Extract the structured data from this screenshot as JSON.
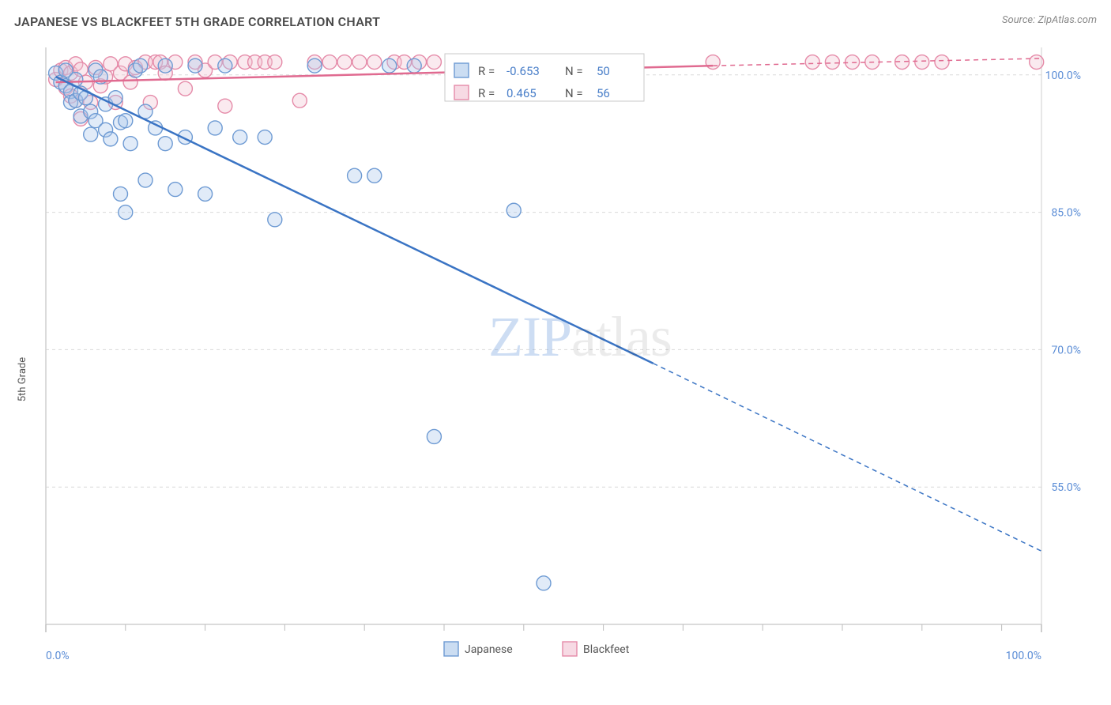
{
  "title": "JAPANESE VS BLACKFEET 5TH GRADE CORRELATION CHART",
  "source_prefix": "Source: ",
  "source_name": "ZipAtlas.com",
  "watermark_a": "ZIP",
  "watermark_b": "atlas",
  "y_axis_label": "5th Grade",
  "chart": {
    "type": "scatter",
    "background_color": "#ffffff",
    "grid_color": "#d9d9d9",
    "axis_color": "#cfcfcf",
    "tick_color": "#bdbdbd",
    "xlim": [
      0,
      100
    ],
    "ylim": [
      40,
      103
    ],
    "x_ticks_major": [
      0,
      100
    ],
    "x_ticks_minor": [
      8,
      16,
      24,
      32,
      40,
      48,
      56,
      64,
      72,
      80,
      88,
      96
    ],
    "x_tick_labels": {
      "0": "0.0%",
      "100": "100.0%"
    },
    "y_gridlines": [
      55,
      70,
      85,
      100
    ],
    "y_tick_labels": {
      "55": "55.0%",
      "70": "70.0%",
      "85": "85.0%",
      "100": "100.0%"
    },
    "marker_radius": 9,
    "marker_stroke_width": 1.4,
    "marker_fill_opacity": 0.35,
    "trend_line_width": 2.5,
    "trend_dash": "6 5"
  },
  "series": {
    "japanese": {
      "label": "Japanese",
      "fill": "#a9c6ea",
      "stroke": "#6d9ad3",
      "line_color": "#3a74c4",
      "R": "-0.653",
      "N": "50",
      "trend": {
        "x1": 1,
        "y1": 99.8,
        "x2_solid": 61,
        "y2_solid": 68.5,
        "x2": 100,
        "y2": 48
      },
      "points": [
        [
          1,
          100.2
        ],
        [
          1.5,
          99.2
        ],
        [
          2,
          98.8
        ],
        [
          2,
          100.5
        ],
        [
          2.5,
          98.2
        ],
        [
          2.5,
          97
        ],
        [
          3,
          97.2
        ],
        [
          3,
          99.5
        ],
        [
          3.5,
          95.5
        ],
        [
          3.5,
          98
        ],
        [
          4,
          97.5
        ],
        [
          4.5,
          96
        ],
        [
          4.5,
          93.5
        ],
        [
          5,
          95
        ],
        [
          5,
          100.5
        ],
        [
          5.5,
          99.8
        ],
        [
          6,
          94
        ],
        [
          6,
          96.8
        ],
        [
          6.5,
          93
        ],
        [
          7,
          97.5
        ],
        [
          7.5,
          94.8
        ],
        [
          7.5,
          87
        ],
        [
          8,
          95
        ],
        [
          8,
          85
        ],
        [
          8.5,
          92.5
        ],
        [
          9,
          100.5
        ],
        [
          9.5,
          101
        ],
        [
          10,
          88.5
        ],
        [
          10,
          96
        ],
        [
          11,
          94.2
        ],
        [
          12,
          92.5
        ],
        [
          12,
          101
        ],
        [
          13,
          87.5
        ],
        [
          14,
          93.2
        ],
        [
          15,
          101
        ],
        [
          16,
          87
        ],
        [
          17,
          94.2
        ],
        [
          18,
          101
        ],
        [
          19.5,
          93.2
        ],
        [
          22,
          93.2
        ],
        [
          23,
          84.2
        ],
        [
          27,
          101
        ],
        [
          31,
          89
        ],
        [
          33,
          89
        ],
        [
          34.5,
          101
        ],
        [
          37,
          101
        ],
        [
          39,
          60.5
        ],
        [
          47,
          85.2
        ],
        [
          48,
          101
        ],
        [
          50,
          44.5
        ]
      ]
    },
    "blackfeet": {
      "label": "Blackfeet",
      "fill": "#f2c2d2",
      "stroke": "#e58aa8",
      "line_color": "#e06a90",
      "R": "0.465",
      "N": "56",
      "trend": {
        "x1": 1,
        "y1": 99.2,
        "x2_solid": 67,
        "y2_solid": 101,
        "x2": 100,
        "y2": 101.8
      },
      "points": [
        [
          1,
          99.5
        ],
        [
          1.5,
          100.5
        ],
        [
          2,
          98.6
        ],
        [
          2,
          100.8
        ],
        [
          2.5,
          97.7
        ],
        [
          2.5,
          100.2
        ],
        [
          3,
          97.2
        ],
        [
          3,
          101.2
        ],
        [
          3.5,
          100.6
        ],
        [
          3.5,
          95.2
        ],
        [
          4,
          99.2
        ],
        [
          4.5,
          97
        ],
        [
          5,
          100.8
        ],
        [
          5.5,
          98.8
        ],
        [
          6,
          99.8
        ],
        [
          6.5,
          101.2
        ],
        [
          7,
          97
        ],
        [
          7.5,
          100.2
        ],
        [
          8,
          101.2
        ],
        [
          8.5,
          99.2
        ],
        [
          9,
          100.8
        ],
        [
          10,
          101.4
        ],
        [
          10.5,
          97
        ],
        [
          11,
          101.4
        ],
        [
          11.5,
          101.4
        ],
        [
          12,
          100.2
        ],
        [
          13,
          101.4
        ],
        [
          14,
          98.5
        ],
        [
          15,
          101.4
        ],
        [
          16,
          100.5
        ],
        [
          17,
          101.4
        ],
        [
          18,
          96.6
        ],
        [
          18.5,
          101.4
        ],
        [
          20,
          101.4
        ],
        [
          21,
          101.4
        ],
        [
          22,
          101.4
        ],
        [
          23,
          101.4
        ],
        [
          25.5,
          97.2
        ],
        [
          27,
          101.4
        ],
        [
          28.5,
          101.4
        ],
        [
          30,
          101.4
        ],
        [
          31.5,
          101.4
        ],
        [
          33,
          101.4
        ],
        [
          35,
          101.4
        ],
        [
          36,
          101.4
        ],
        [
          37.5,
          101.4
        ],
        [
          39,
          101.4
        ],
        [
          67,
          101.4
        ],
        [
          77,
          101.4
        ],
        [
          79,
          101.4
        ],
        [
          81,
          101.4
        ],
        [
          83,
          101.4
        ],
        [
          86,
          101.4
        ],
        [
          88,
          101.4
        ],
        [
          90,
          101.4
        ],
        [
          99.5,
          101.4
        ]
      ]
    }
  },
  "stats_box": {
    "R_label": "R =",
    "N_label": "N ="
  },
  "x_legend": {
    "japanese": "Japanese",
    "blackfeet": "Blackfeet"
  }
}
